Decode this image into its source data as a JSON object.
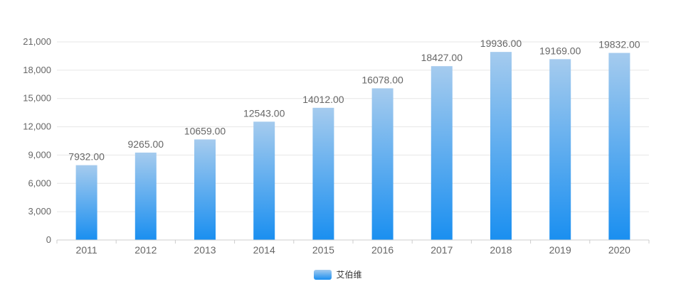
{
  "chart_data": {
    "type": "bar",
    "categories": [
      "2011",
      "2012",
      "2013",
      "2014",
      "2015",
      "2016",
      "2017",
      "2018",
      "2019",
      "2020"
    ],
    "series": [
      {
        "name": "艾伯维",
        "values": [
          7932,
          9265,
          10659,
          12543,
          14012,
          16078,
          18427,
          19936,
          19169,
          19832
        ],
        "labels": [
          "7932.00",
          "9265.00",
          "10659.00",
          "12543.00",
          "14012.00",
          "16078.00",
          "18427.00",
          "19936.00",
          "19169.00",
          "19832.00"
        ]
      }
    ],
    "ylim": [
      0,
      21000
    ],
    "yticks": [
      0,
      3000,
      6000,
      9000,
      12000,
      15000,
      18000,
      21000
    ],
    "ytick_labels": [
      "0",
      "3,000",
      "6,000",
      "9,000",
      "12,000",
      "15,000",
      "18,000",
      "21,000"
    ],
    "grid": true,
    "legend_position": "bottom-center",
    "colors": {
      "bar_top": "#a5cbee",
      "bar_bottom": "#1a8ff0",
      "grid": "#e6e6e6",
      "axis": "#cccccc",
      "text": "#666666"
    }
  }
}
